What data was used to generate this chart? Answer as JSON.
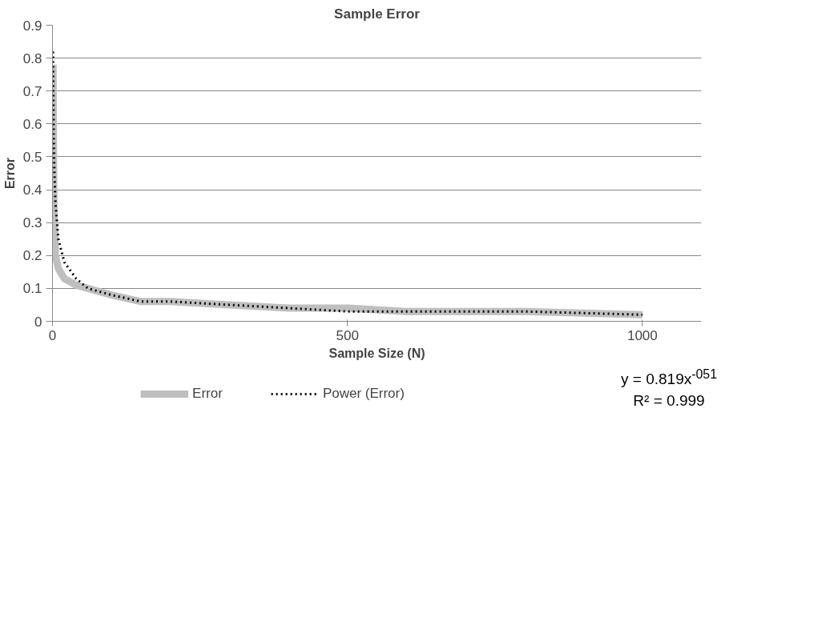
{
  "chart_data": {
    "type": "line",
    "title": "Sample Error",
    "xlabel": "Sample Size (N)",
    "ylabel": "Error",
    "xlim": [
      0,
      1100
    ],
    "xticks": [
      0,
      500,
      1000
    ],
    "ylim": [
      0,
      0.9
    ],
    "yticks": [
      0,
      0.1,
      0.2,
      0.3,
      0.4,
      0.5,
      0.6,
      0.7,
      0.8,
      0.9
    ],
    "grid": "y",
    "legend": "bottom",
    "series": [
      {
        "name": "Error",
        "color": "#bfbfbf",
        "line_style": "solid",
        "x": [
          1,
          2,
          3,
          5,
          10,
          20,
          40,
          60,
          100,
          150,
          200,
          300,
          400,
          500,
          600,
          800,
          1000
        ],
        "values": [
          0.78,
          0.42,
          0.3,
          0.2,
          0.16,
          0.13,
          0.11,
          0.1,
          0.08,
          0.06,
          0.06,
          0.05,
          0.04,
          0.04,
          0.03,
          0.03,
          0.02
        ]
      },
      {
        "name": "Power (Error)",
        "type": "line",
        "color": "#000000",
        "line_style": "dotted",
        "x": [
          1,
          2,
          3,
          5,
          10,
          20,
          40,
          60,
          100,
          150,
          200,
          300,
          400,
          500,
          600,
          800,
          1000
        ],
        "values": [
          0.82,
          0.57,
          0.47,
          0.36,
          0.25,
          0.18,
          0.13,
          0.1,
          0.08,
          0.06,
          0.06,
          0.05,
          0.04,
          0.03,
          0.03,
          0.03,
          0.02
        ]
      }
    ],
    "annotations": [
      "y = 0.819x$^{-051}$",
      "R² = 0.999"
    ]
  }
}
